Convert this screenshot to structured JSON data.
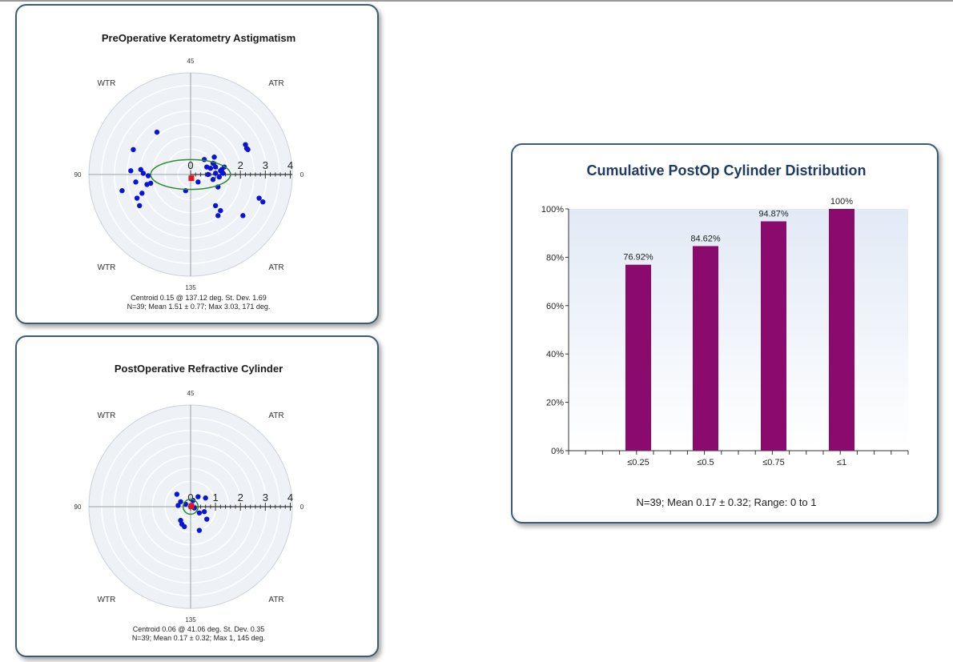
{
  "colors": {
    "card_border": "#3c5a7a",
    "title": "#1a1a1a",
    "polar_fill": "#eef2f7",
    "polar_ring": "#ffffff",
    "point": "#0a14d6",
    "centroid": "#e01818",
    "ellipse": "#2e8b2e",
    "bar": "#8b0a6e",
    "cum_title": "#1f3b66",
    "plot_bg_top": "#e2eaf6",
    "plot_bg_bottom": "#ffffff"
  },
  "chart_data": [
    {
      "id": "pre",
      "type": "scatter",
      "subtype": "polar-double-angle",
      "title": "PreOperative Keratometry Astigmatism",
      "angle_labels": {
        "top": "45",
        "right": "0",
        "bottom": "135",
        "left": "90"
      },
      "quadrant_labels": {
        "top_left": "WTR",
        "top_right": "ATR",
        "bottom_left": "WTR",
        "bottom_right": "ATR"
      },
      "radial_tick_labels": [
        "0",
        "1",
        "2",
        "3",
        "4"
      ],
      "r_max": 4,
      "points": [
        {
          "x": -1.35,
          "y": 1.7
        },
        {
          "x": -2.3,
          "y": 1.0
        },
        {
          "x": -2.4,
          "y": 0.15
        },
        {
          "x": -2.0,
          "y": 0.2
        },
        {
          "x": -1.9,
          "y": 0.05
        },
        {
          "x": -1.7,
          "y": -0.05
        },
        {
          "x": -2.2,
          "y": -0.3
        },
        {
          "x": -1.75,
          "y": -0.4
        },
        {
          "x": -1.6,
          "y": -0.35
        },
        {
          "x": -2.75,
          "y": -0.65
        },
        {
          "x": -1.95,
          "y": -0.75
        },
        {
          "x": -2.15,
          "y": -0.95
        },
        {
          "x": -2.05,
          "y": -1.25
        },
        {
          "x": -0.2,
          "y": -0.65
        },
        {
          "x": 0.55,
          "y": 0.6
        },
        {
          "x": 0.95,
          "y": 0.7
        },
        {
          "x": 0.65,
          "y": 0.3
        },
        {
          "x": 0.8,
          "y": 0.25
        },
        {
          "x": 1.25,
          "y": 0.2
        },
        {
          "x": 1.35,
          "y": 0.3
        },
        {
          "x": 1.0,
          "y": 0.05
        },
        {
          "x": 1.3,
          "y": 0.05
        },
        {
          "x": 1.15,
          "y": -0.1
        },
        {
          "x": 0.9,
          "y": -0.2
        },
        {
          "x": 0.3,
          "y": -0.3
        },
        {
          "x": 1.1,
          "y": -0.5
        },
        {
          "x": 1.0,
          "y": -1.25
        },
        {
          "x": 1.2,
          "y": -1.45
        },
        {
          "x": 1.1,
          "y": -1.65
        },
        {
          "x": 2.2,
          "y": 1.2
        },
        {
          "x": 2.3,
          "y": 1.0
        },
        {
          "x": 2.25,
          "y": 1.05
        },
        {
          "x": 2.1,
          "y": -1.65
        },
        {
          "x": 2.75,
          "y": -0.95
        },
        {
          "x": 2.9,
          "y": -1.1
        },
        {
          "x": 0.9,
          "y": 0.45
        },
        {
          "x": 1.0,
          "y": 0.3
        },
        {
          "x": 0.7,
          "y": 0.0
        },
        {
          "x": 1.2,
          "y": 0.15
        }
      ],
      "centroid": {
        "x": 0.03,
        "y": -0.15
      },
      "ellipse": {
        "cx": 0.0,
        "cy": 0.0,
        "rx": 1.6,
        "ry": 0.6
      },
      "summary_line1": "Centroid 0.15 @ 137.12 deg. St. Dev. 1.69",
      "summary_line2": "N=39; Mean 1.51 ± 0.77; Max 3.03, 171 deg."
    },
    {
      "id": "post",
      "type": "scatter",
      "subtype": "polar-double-angle",
      "title": "PostOperative Refractive Cylinder",
      "angle_labels": {
        "top": "45",
        "right": "0",
        "bottom": "135",
        "left": "90"
      },
      "quadrant_labels": {
        "top_left": "WTR",
        "top_right": "ATR",
        "bottom_left": "WTR",
        "bottom_right": "ATR"
      },
      "radial_tick_labels": [
        "0",
        "1",
        "2",
        "3",
        "4"
      ],
      "r_max": 4,
      "points": [
        {
          "x": -0.55,
          "y": 0.5
        },
        {
          "x": -0.4,
          "y": 0.2
        },
        {
          "x": -0.5,
          "y": 0.05
        },
        {
          "x": -0.2,
          "y": 0.1
        },
        {
          "x": 0.3,
          "y": 0.4
        },
        {
          "x": 0.1,
          "y": 0.25
        },
        {
          "x": 0.05,
          "y": 0.05
        },
        {
          "x": 0.0,
          "y": 0.0
        },
        {
          "x": 0.15,
          "y": -0.05
        },
        {
          "x": 0.35,
          "y": -0.25
        },
        {
          "x": 0.6,
          "y": 0.35
        },
        {
          "x": 0.55,
          "y": -0.2
        },
        {
          "x": 0.65,
          "y": -0.5
        },
        {
          "x": -0.4,
          "y": -0.55
        },
        {
          "x": -0.25,
          "y": -0.8
        },
        {
          "x": 0.35,
          "y": -0.95
        },
        {
          "x": -0.35,
          "y": -0.7
        }
      ],
      "centroid": {
        "x": 0.03,
        "y": 0.02
      },
      "ellipse": {
        "cx": 0.0,
        "cy": 0.0,
        "rx": 0.3,
        "ry": 0.3
      },
      "summary_line1": "Centroid 0.06 @ 41.06 deg. St. Dev. 0.35",
      "summary_line2": "N=39; Mean 0.17 ± 0.32; Max 1, 145 deg."
    },
    {
      "id": "cum",
      "type": "bar",
      "title": "Cumulative PostOp Cylinder Distribution",
      "categories": [
        "≤0.25",
        "≤0.5",
        "≤0.75",
        "≤1"
      ],
      "values": [
        76.92,
        84.62,
        94.87,
        100
      ],
      "value_labels": [
        "76.92%",
        "84.62%",
        "94.87%",
        "100%"
      ],
      "y_ticks": [
        "0%",
        "20%",
        "40%",
        "60%",
        "80%",
        "100%"
      ],
      "ylim": [
        0,
        100
      ],
      "footer": "N=39; Mean 0.17 ± 0.32; Range: 0 to 1"
    }
  ]
}
